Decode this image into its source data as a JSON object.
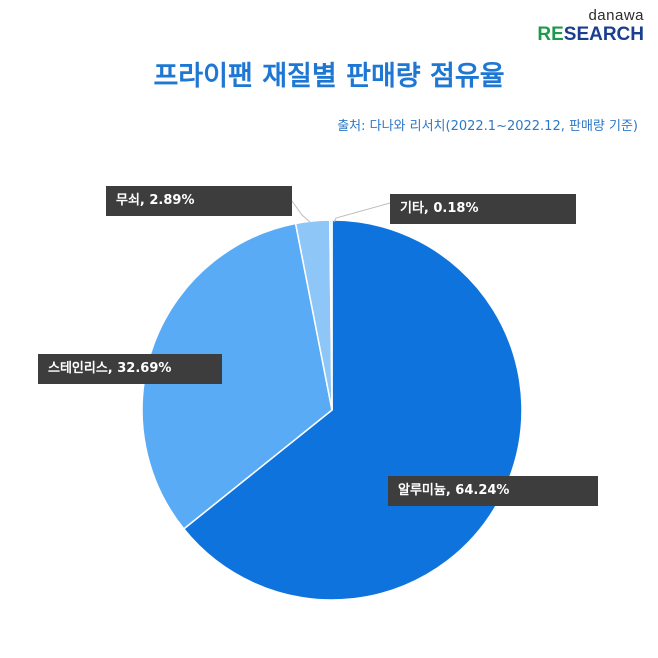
{
  "logo": {
    "top": "danawa",
    "bottom_re": "RE",
    "bottom_rest": "SEARCH"
  },
  "title": "프라이팬 재질별 판매량 점유율",
  "source": "출처: 다나와 리서치(2022.1~2022.12, 판매량 기준)",
  "chart_data": {
    "type": "pie",
    "title": "프라이팬 재질별 판매량 점유율",
    "slices": [
      {
        "name": "알루미늄",
        "value": 64.24,
        "label": "알루미늄, 64.24%",
        "color": "#0f73de"
      },
      {
        "name": "스테인리스",
        "value": 32.69,
        "label": "스테인리스, 32.69%",
        "color": "#5aabf5"
      },
      {
        "name": "무쇠",
        "value": 2.89,
        "label": "무쇠, 2.89%",
        "color": "#8fc6f8"
      },
      {
        "name": "기타",
        "value": 0.18,
        "label": "기타, 0.18%",
        "color": "#c9e3fb"
      }
    ],
    "start": "12 o'clock",
    "direction": "clockwise"
  }
}
